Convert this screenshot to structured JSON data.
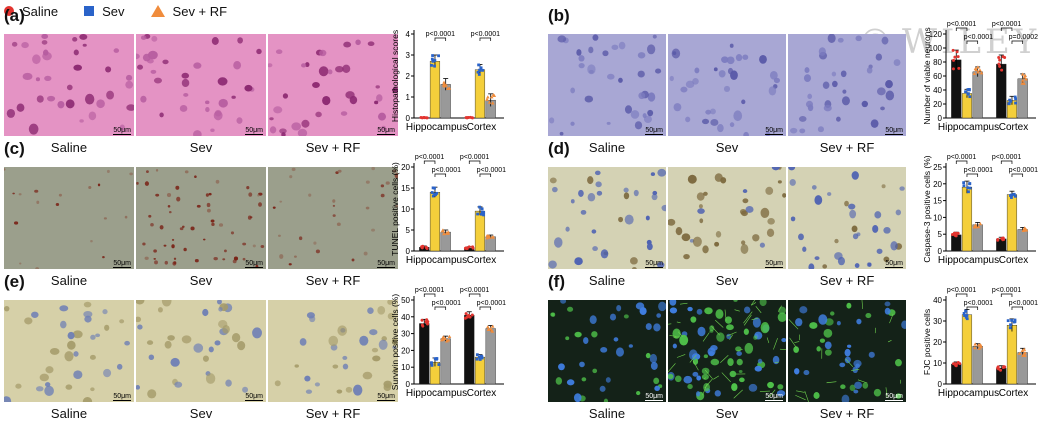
{
  "legend": [
    {
      "label": "Saline",
      "color": "#e3342f",
      "shape": "circle"
    },
    {
      "label": "Sev",
      "color": "#2a63c9",
      "shape": "square"
    },
    {
      "label": "Sev + RF",
      "color": "#f08c3c",
      "shape": "triangle"
    }
  ],
  "watermark": {
    "symbol": "©",
    "text": "WILEY"
  },
  "captions": [
    "Saline",
    "Sev",
    "Sev + RF"
  ],
  "scale_label": "50μm",
  "bar_colors": [
    "#111111",
    "#f4cf3b",
    "#999999"
  ],
  "panels": [
    {
      "label": "(a)",
      "stain": "he",
      "chart_data": {
        "type": "bar",
        "ylabel": "Histopathological scores",
        "ylim": [
          0,
          4
        ],
        "yticks": [
          0,
          1,
          2,
          3,
          4
        ],
        "categories": [
          "Hippocampus",
          "Cortex"
        ],
        "series": [
          {
            "values": [
              0.02,
              0.02
            ]
          },
          {
            "values": [
              2.7,
              2.3
            ]
          },
          {
            "values": [
              1.6,
              0.85
            ]
          }
        ],
        "errors": [
          [
            0.02,
            0.02
          ],
          [
            0.3,
            0.25
          ],
          [
            0.28,
            0.3
          ]
        ],
        "annotations": [
          {
            "text": "p<0.0001",
            "group": 0,
            "from": 1,
            "to": 2
          },
          {
            "text": "p<0.0001",
            "group": 1,
            "from": 1,
            "to": 2
          }
        ]
      }
    },
    {
      "label": "(b)",
      "stain": "nissl",
      "chart_data": {
        "type": "bar",
        "ylabel": "Number of viable neurons",
        "ylim": [
          0,
          120
        ],
        "yticks": [
          0,
          20,
          40,
          60,
          80,
          100,
          120
        ],
        "categories": [
          "Hippocampus",
          "Cortex"
        ],
        "series": [
          {
            "values": [
              83,
              77
            ]
          },
          {
            "values": [
              35,
              25
            ]
          },
          {
            "values": [
              66,
              56
            ]
          }
        ],
        "errors": [
          [
            14,
            13
          ],
          [
            6,
            6
          ],
          [
            7,
            7
          ]
        ],
        "annotations": [
          {
            "text": "p<0.0001",
            "group": 0,
            "from": 0,
            "to": 1
          },
          {
            "text": "p<0.0001",
            "group": 0,
            "from": 1,
            "to": 2
          },
          {
            "text": "p<0.0001",
            "group": 1,
            "from": 0,
            "to": 1
          },
          {
            "text": "p=0.0002",
            "group": 1,
            "from": 1,
            "to": 2
          }
        ]
      }
    },
    {
      "label": "(c)",
      "stain": "tunel",
      "chart_data": {
        "type": "bar",
        "ylabel": "TUNEL positive cells (%)",
        "ylim": [
          0,
          20
        ],
        "yticks": [
          0,
          5,
          10,
          15,
          20
        ],
        "categories": [
          "Hippocampus",
          "Cortex"
        ],
        "series": [
          {
            "values": [
              0.9,
              0.7
            ]
          },
          {
            "values": [
              14,
              9.5
            ]
          },
          {
            "values": [
              4.5,
              3.4
            ]
          }
        ],
        "errors": [
          [
            0.3,
            0.3
          ],
          [
            1.2,
            1.0
          ],
          [
            0.5,
            0.4
          ]
        ],
        "annotations": [
          {
            "text": "p<0.0001",
            "group": 0,
            "from": 0,
            "to": 1
          },
          {
            "text": "p<0.0001",
            "group": 0,
            "from": 1,
            "to": 2
          },
          {
            "text": "p<0.0001",
            "group": 1,
            "from": 0,
            "to": 1
          },
          {
            "text": "p<0.0001",
            "group": 1,
            "from": 1,
            "to": 2
          }
        ]
      }
    },
    {
      "label": "(d)",
      "stain": "casp",
      "chart_data": {
        "type": "bar",
        "ylabel": "Caspase-3 positive cells (%)",
        "ylim": [
          0,
          25
        ],
        "yticks": [
          0,
          5,
          10,
          15,
          20,
          25
        ],
        "categories": [
          "Hippocampus",
          "Cortex"
        ],
        "series": [
          {
            "values": [
              4.8,
              3.6
            ]
          },
          {
            "values": [
              19,
              16.8
            ]
          },
          {
            "values": [
              7.8,
              6.4
            ]
          }
        ],
        "errors": [
          [
            0.8,
            0.5
          ],
          [
            1.8,
            1.0
          ],
          [
            0.7,
            0.6
          ]
        ],
        "annotations": [
          {
            "text": "p<0.0001",
            "group": 0,
            "from": 0,
            "to": 1
          },
          {
            "text": "p<0.0001",
            "group": 0,
            "from": 1,
            "to": 2
          },
          {
            "text": "p<0.0001",
            "group": 1,
            "from": 0,
            "to": 1
          },
          {
            "text": "p<0.0001",
            "group": 1,
            "from": 1,
            "to": 2
          }
        ]
      }
    },
    {
      "label": "(e)",
      "stain": "surv",
      "chart_data": {
        "type": "bar",
        "ylabel": "Survivin positive cells (%)",
        "ylim": [
          0,
          50
        ],
        "yticks": [
          0,
          10,
          20,
          30,
          40,
          50
        ],
        "categories": [
          "Hippocampus",
          "Cortex"
        ],
        "series": [
          {
            "values": [
              36,
              41
            ]
          },
          {
            "values": [
              13,
              16
            ]
          },
          {
            "values": [
              27,
              33
            ]
          }
        ],
        "errors": [
          [
            2.5,
            2
          ],
          [
            2.5,
            1.5
          ],
          [
            1.5,
            1.8
          ]
        ],
        "annotations": [
          {
            "text": "p<0.0001",
            "group": 0,
            "from": 0,
            "to": 1
          },
          {
            "text": "p<0.0001",
            "group": 0,
            "from": 1,
            "to": 2
          },
          {
            "text": "p<0.0001",
            "group": 1,
            "from": 0,
            "to": 1
          },
          {
            "text": "p<0.0001",
            "group": 1,
            "from": 1,
            "to": 2
          }
        ]
      }
    },
    {
      "label": "(f)",
      "stain": "fjc",
      "chart_data": {
        "type": "bar",
        "ylabel": "FJC positive cells",
        "ylim": [
          0,
          40
        ],
        "yticks": [
          0,
          10,
          20,
          30,
          40
        ],
        "categories": [
          "Hippocampus",
          "Cortex"
        ],
        "series": [
          {
            "values": [
              9.5,
              7.5
            ]
          },
          {
            "values": [
              33,
              28
            ]
          },
          {
            "values": [
              18,
              15
            ]
          }
        ],
        "errors": [
          [
            1,
            1.2
          ],
          [
            2.5,
            3
          ],
          [
            1.2,
            2
          ]
        ],
        "annotations": [
          {
            "text": "p<0.0001",
            "group": 0,
            "from": 0,
            "to": 1
          },
          {
            "text": "p<0.0001",
            "group": 0,
            "from": 1,
            "to": 2
          },
          {
            "text": "p<0.0001",
            "group": 1,
            "from": 0,
            "to": 1
          },
          {
            "text": "p<0.0001",
            "group": 1,
            "from": 1,
            "to": 2
          }
        ]
      }
    }
  ]
}
